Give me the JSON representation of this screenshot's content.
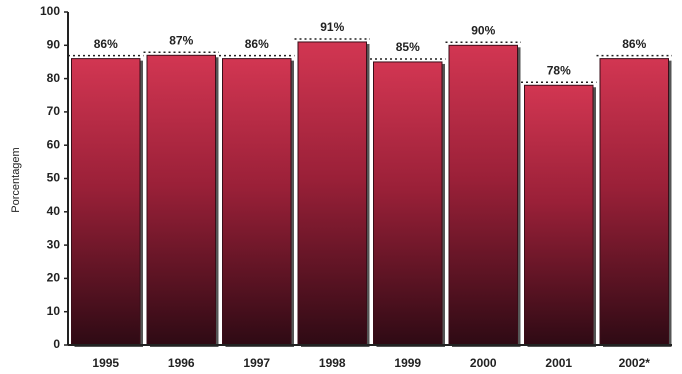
{
  "chart_data": {
    "type": "bar",
    "y_label": "Porcentagem",
    "categories": [
      "1995",
      "1996",
      "1997",
      "1998",
      "1999",
      "2000",
      "2001",
      "2002*"
    ],
    "values": [
      86,
      87,
      86,
      91,
      85,
      90,
      78,
      86
    ],
    "value_labels": [
      "86%",
      "87%",
      "86%",
      "91%",
      "85%",
      "90%",
      "78%",
      "86%"
    ],
    "color": "#c8304a",
    "ylim": [
      0,
      100
    ],
    "yticks": [
      0,
      10,
      20,
      30,
      40,
      50,
      60,
      70,
      80,
      90,
      100
    ]
  }
}
